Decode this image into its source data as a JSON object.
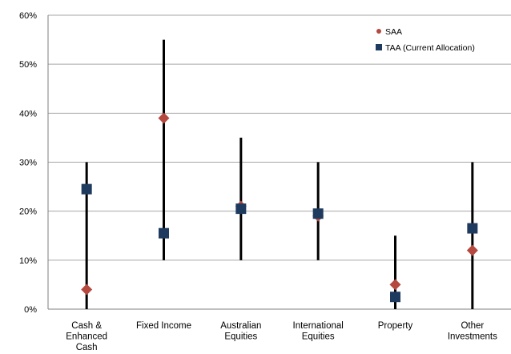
{
  "chart_data": {
    "type": "scatter",
    "title": "",
    "xlabel": "",
    "ylabel": "",
    "ylim": [
      0,
      60
    ],
    "y_ticks": [
      "0%",
      "10%",
      "20%",
      "30%",
      "40%",
      "50%",
      "60%"
    ],
    "grid": "horizontal",
    "legend_position": "top-right",
    "categories": [
      [
        "Cash &",
        "Enhanced",
        "Cash"
      ],
      [
        "Fixed Income"
      ],
      [
        "Australian",
        "Equities"
      ],
      [
        "International",
        "Equities"
      ],
      [
        "Property"
      ],
      [
        "Other",
        "Investments"
      ]
    ],
    "ranges": [
      {
        "low": 0,
        "high": 30
      },
      {
        "low": 10,
        "high": 55
      },
      {
        "low": 10,
        "high": 35
      },
      {
        "low": 10,
        "high": 30
      },
      {
        "low": 0,
        "high": 15
      },
      {
        "low": 0,
        "high": 30
      }
    ],
    "series": [
      {
        "name": "SAA",
        "marker": "diamond",
        "color": "#b5483f",
        "values": [
          4,
          39,
          21,
          19,
          5,
          12
        ]
      },
      {
        "name": "TAA (Current Allocation)",
        "marker": "square",
        "color": "#1f3a5f",
        "values": [
          24.5,
          15.5,
          20.5,
          19.5,
          2.5,
          16.5
        ]
      }
    ],
    "colors": {
      "range_line": "#000000",
      "grid": "#a6a6a6",
      "axis": "#7f7f7f",
      "text": "#000000"
    }
  }
}
